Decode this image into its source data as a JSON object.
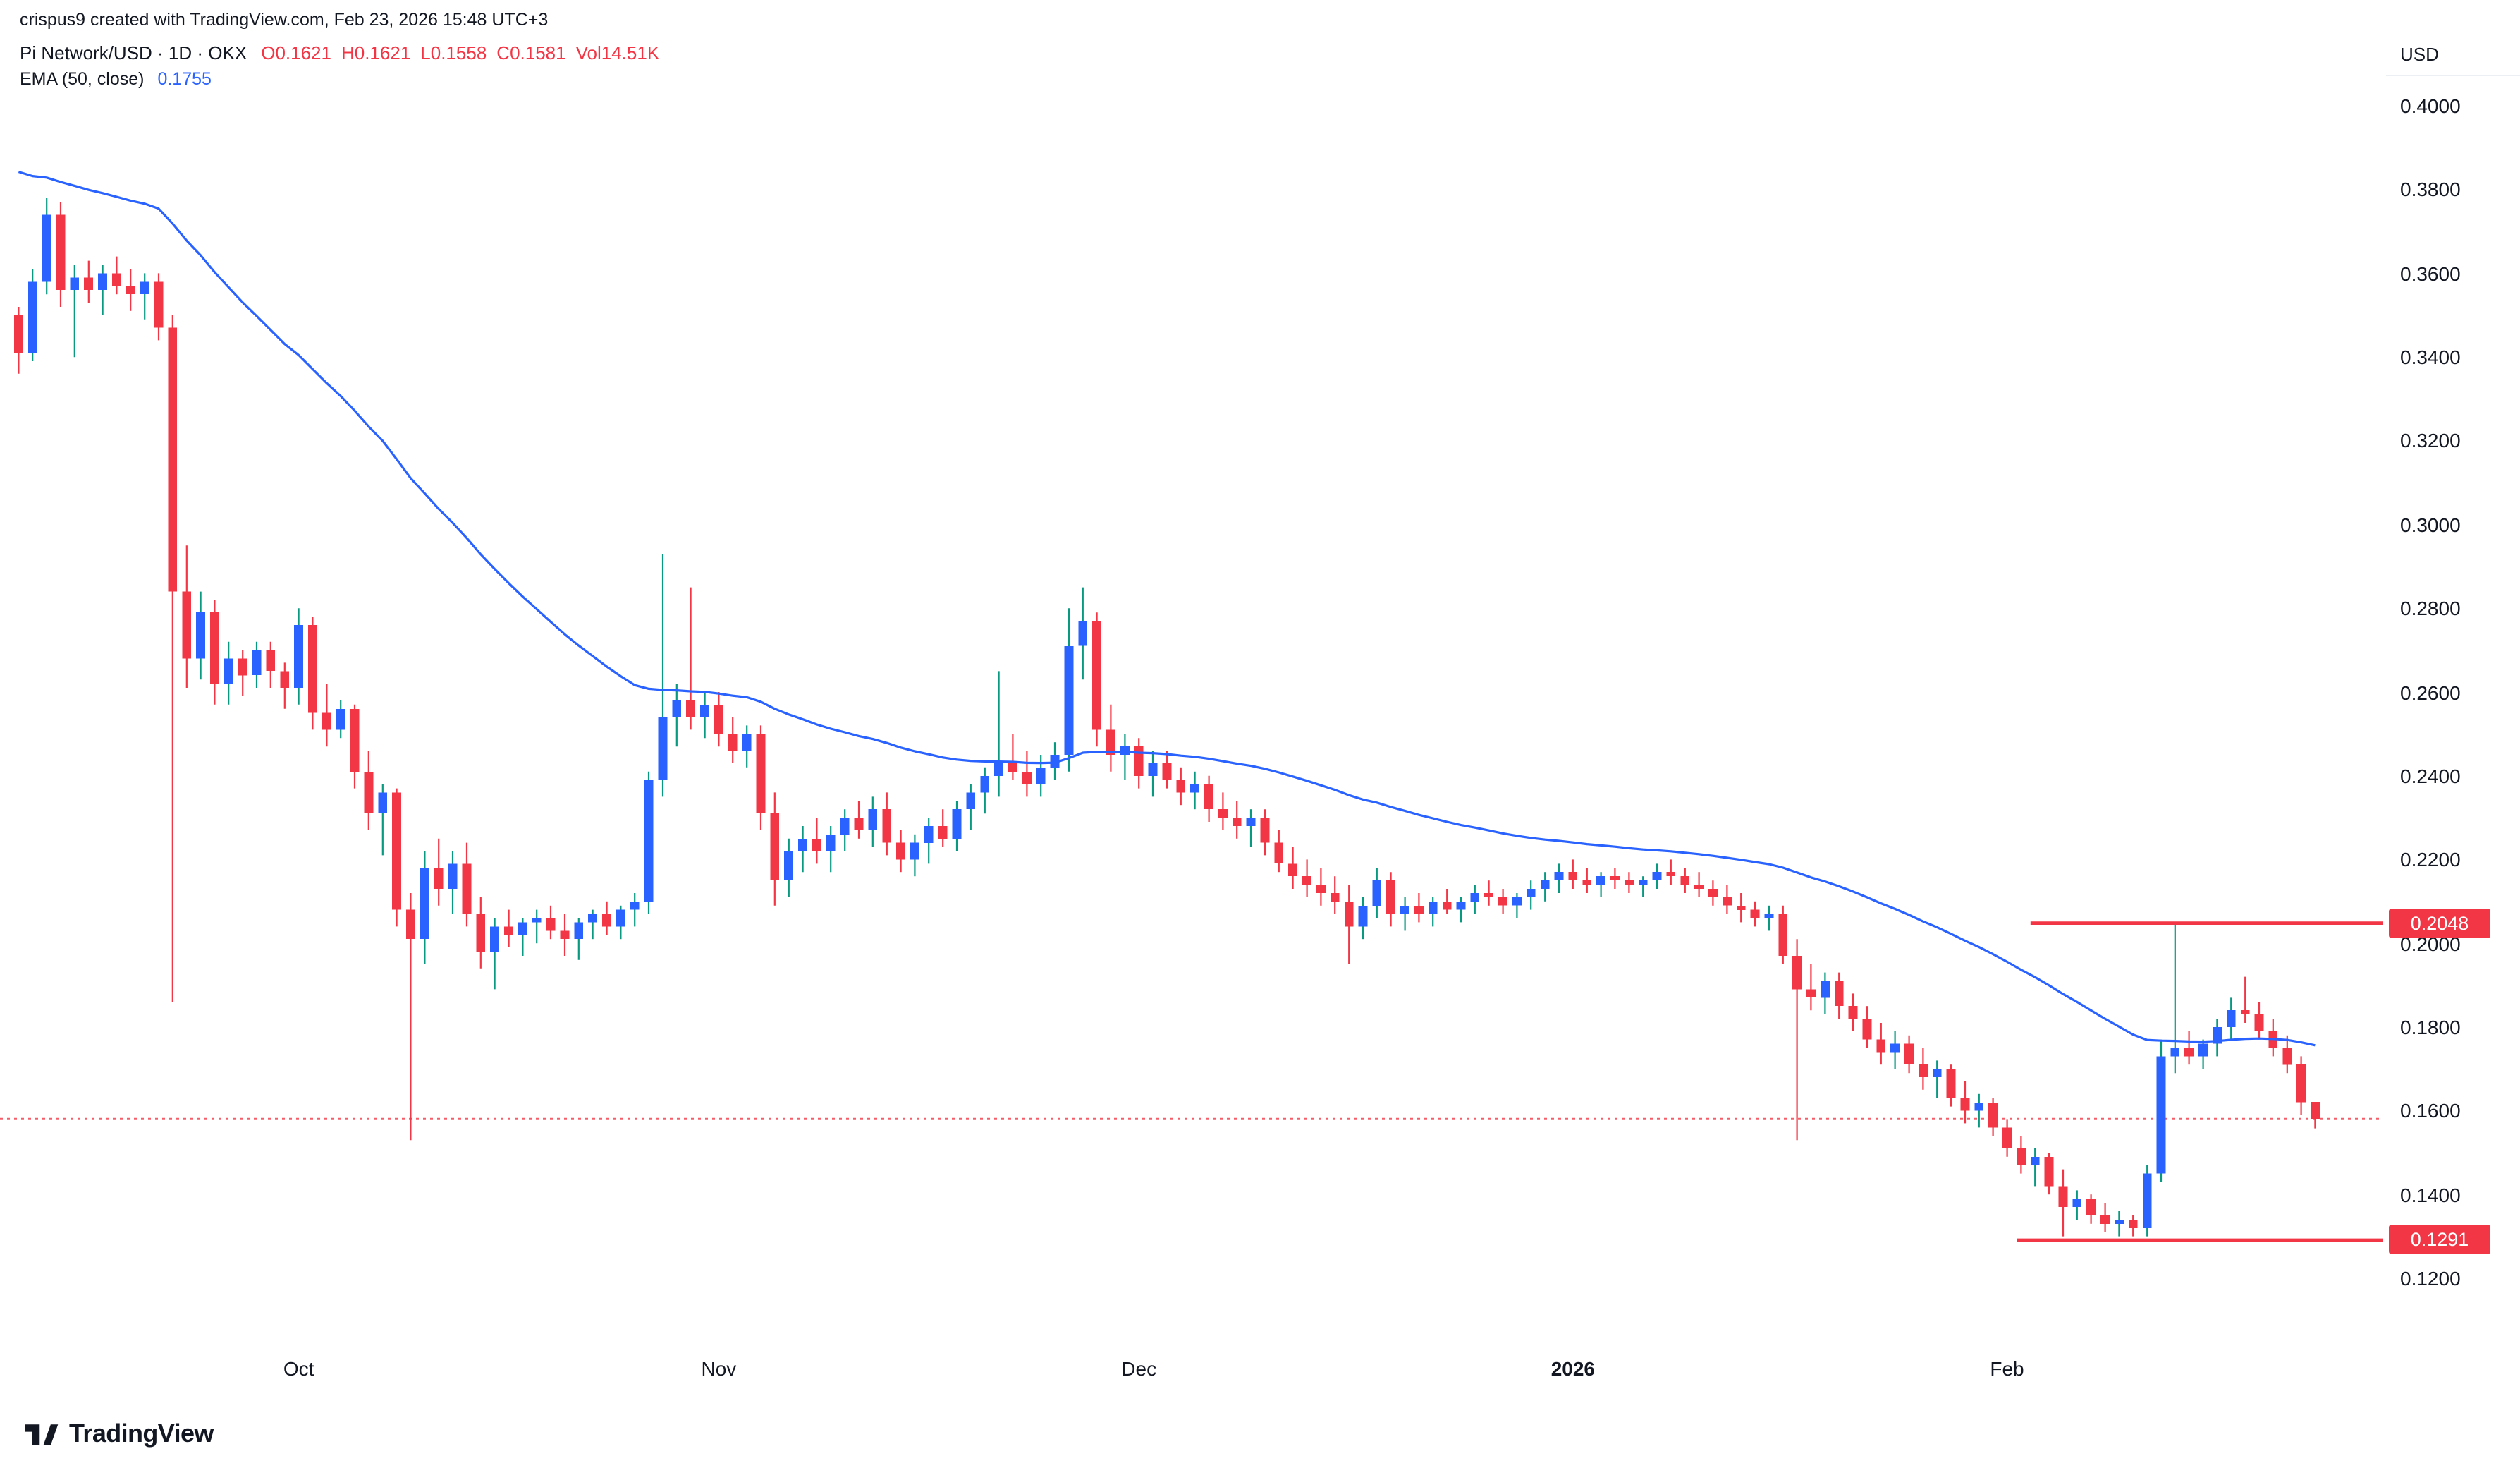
{
  "attribution": "crispus9 created with TradingView.com, Feb 23, 2026 15:48 UTC+3",
  "legend": {
    "symbol": "Pi Network/USD · 1D · OKX",
    "ohlc": [
      {
        "label": "O",
        "value": "0.1621"
      },
      {
        "label": "H",
        "value": "0.1621"
      },
      {
        "label": "L",
        "value": "0.1558"
      },
      {
        "label": "C",
        "value": "0.1581"
      }
    ],
    "volume_label": "Vol",
    "volume_value": "14.51K",
    "ema_label": "EMA (50, close)",
    "ema_value": "0.1755"
  },
  "price_axis": {
    "currency": "USD"
  },
  "footer": {
    "brand": "TradingView"
  },
  "colors": {
    "up": "#2962ff",
    "up_wick": "#089981",
    "down": "#f23645",
    "ema": "#2962ff",
    "level": "#f23645",
    "text": "#131722",
    "badge_text": "#ffffff"
  },
  "chart_data": {
    "type": "candlestick",
    "symbol": "Pi Network/USD",
    "interval": "1D",
    "exchange": "OKX",
    "last_ohlc": {
      "open": 0.1621,
      "high": 0.1621,
      "low": 0.1558,
      "close": 0.1581,
      "volume": "14.51K"
    },
    "ylim": [
      0.12,
      0.4
    ],
    "grid": false,
    "candles": [
      [
        0.35,
        0.352,
        0.336,
        0.341
      ],
      [
        0.341,
        0.361,
        0.339,
        0.358
      ],
      [
        0.358,
        0.378,
        0.355,
        0.374
      ],
      [
        0.374,
        0.377,
        0.352,
        0.356
      ],
      [
        0.356,
        0.362,
        0.34,
        0.359
      ],
      [
        0.359,
        0.363,
        0.353,
        0.356
      ],
      [
        0.356,
        0.362,
        0.35,
        0.36
      ],
      [
        0.36,
        0.364,
        0.355,
        0.357
      ],
      [
        0.357,
        0.361,
        0.351,
        0.355
      ],
      [
        0.355,
        0.36,
        0.349,
        0.358
      ],
      [
        0.358,
        0.36,
        0.344,
        0.347
      ],
      [
        0.347,
        0.35,
        0.186,
        0.284
      ],
      [
        0.284,
        0.295,
        0.261,
        0.268
      ],
      [
        0.268,
        0.284,
        0.263,
        0.279
      ],
      [
        0.279,
        0.282,
        0.257,
        0.262
      ],
      [
        0.262,
        0.272,
        0.257,
        0.268
      ],
      [
        0.268,
        0.27,
        0.259,
        0.264
      ],
      [
        0.264,
        0.272,
        0.261,
        0.27
      ],
      [
        0.27,
        0.272,
        0.261,
        0.265
      ],
      [
        0.265,
        0.267,
        0.256,
        0.261
      ],
      [
        0.261,
        0.28,
        0.257,
        0.276
      ],
      [
        0.276,
        0.278,
        0.251,
        0.255
      ],
      [
        0.255,
        0.262,
        0.247,
        0.251
      ],
      [
        0.251,
        0.258,
        0.249,
        0.256
      ],
      [
        0.256,
        0.257,
        0.237,
        0.241
      ],
      [
        0.241,
        0.246,
        0.227,
        0.231
      ],
      [
        0.231,
        0.238,
        0.221,
        0.236
      ],
      [
        0.236,
        0.237,
        0.204,
        0.208
      ],
      [
        0.208,
        0.212,
        0.153,
        0.201
      ],
      [
        0.201,
        0.222,
        0.195,
        0.218
      ],
      [
        0.218,
        0.225,
        0.209,
        0.213
      ],
      [
        0.213,
        0.222,
        0.207,
        0.219
      ],
      [
        0.219,
        0.224,
        0.204,
        0.207
      ],
      [
        0.207,
        0.211,
        0.194,
        0.198
      ],
      [
        0.198,
        0.206,
        0.189,
        0.204
      ],
      [
        0.204,
        0.208,
        0.199,
        0.202
      ],
      [
        0.202,
        0.206,
        0.197,
        0.205
      ],
      [
        0.205,
        0.208,
        0.2,
        0.206
      ],
      [
        0.206,
        0.209,
        0.201,
        0.203
      ],
      [
        0.203,
        0.207,
        0.197,
        0.201
      ],
      [
        0.201,
        0.206,
        0.196,
        0.205
      ],
      [
        0.205,
        0.208,
        0.201,
        0.207
      ],
      [
        0.207,
        0.21,
        0.202,
        0.204
      ],
      [
        0.204,
        0.209,
        0.201,
        0.208
      ],
      [
        0.208,
        0.212,
        0.204,
        0.21
      ],
      [
        0.21,
        0.241,
        0.207,
        0.239
      ],
      [
        0.239,
        0.293,
        0.235,
        0.254
      ],
      [
        0.254,
        0.262,
        0.247,
        0.258
      ],
      [
        0.258,
        0.285,
        0.251,
        0.254
      ],
      [
        0.254,
        0.26,
        0.249,
        0.257
      ],
      [
        0.257,
        0.26,
        0.247,
        0.25
      ],
      [
        0.25,
        0.254,
        0.243,
        0.246
      ],
      [
        0.246,
        0.252,
        0.242,
        0.25
      ],
      [
        0.25,
        0.252,
        0.227,
        0.231
      ],
      [
        0.231,
        0.236,
        0.209,
        0.215
      ],
      [
        0.215,
        0.225,
        0.211,
        0.222
      ],
      [
        0.222,
        0.228,
        0.217,
        0.225
      ],
      [
        0.225,
        0.23,
        0.219,
        0.222
      ],
      [
        0.222,
        0.228,
        0.217,
        0.226
      ],
      [
        0.226,
        0.232,
        0.222,
        0.23
      ],
      [
        0.23,
        0.234,
        0.225,
        0.227
      ],
      [
        0.227,
        0.235,
        0.223,
        0.232
      ],
      [
        0.232,
        0.236,
        0.221,
        0.224
      ],
      [
        0.224,
        0.227,
        0.217,
        0.22
      ],
      [
        0.22,
        0.226,
        0.216,
        0.224
      ],
      [
        0.224,
        0.23,
        0.219,
        0.228
      ],
      [
        0.228,
        0.232,
        0.223,
        0.225
      ],
      [
        0.225,
        0.234,
        0.222,
        0.232
      ],
      [
        0.232,
        0.238,
        0.227,
        0.236
      ],
      [
        0.236,
        0.242,
        0.231,
        0.24
      ],
      [
        0.24,
        0.265,
        0.235,
        0.243
      ],
      [
        0.243,
        0.25,
        0.239,
        0.241
      ],
      [
        0.241,
        0.246,
        0.235,
        0.238
      ],
      [
        0.238,
        0.245,
        0.235,
        0.242
      ],
      [
        0.242,
        0.248,
        0.239,
        0.245
      ],
      [
        0.245,
        0.28,
        0.241,
        0.271
      ],
      [
        0.271,
        0.285,
        0.263,
        0.277
      ],
      [
        0.277,
        0.279,
        0.247,
        0.251
      ],
      [
        0.251,
        0.257,
        0.241,
        0.245
      ],
      [
        0.245,
        0.25,
        0.239,
        0.247
      ],
      [
        0.247,
        0.249,
        0.237,
        0.24
      ],
      [
        0.24,
        0.246,
        0.235,
        0.243
      ],
      [
        0.243,
        0.246,
        0.237,
        0.239
      ],
      [
        0.239,
        0.242,
        0.233,
        0.236
      ],
      [
        0.236,
        0.241,
        0.232,
        0.238
      ],
      [
        0.238,
        0.24,
        0.229,
        0.232
      ],
      [
        0.232,
        0.236,
        0.227,
        0.23
      ],
      [
        0.23,
        0.234,
        0.225,
        0.228
      ],
      [
        0.228,
        0.232,
        0.223,
        0.23
      ],
      [
        0.23,
        0.232,
        0.221,
        0.224
      ],
      [
        0.224,
        0.227,
        0.217,
        0.219
      ],
      [
        0.219,
        0.223,
        0.213,
        0.216
      ],
      [
        0.216,
        0.22,
        0.211,
        0.214
      ],
      [
        0.214,
        0.218,
        0.209,
        0.212
      ],
      [
        0.212,
        0.216,
        0.207,
        0.21
      ],
      [
        0.21,
        0.214,
        0.195,
        0.204
      ],
      [
        0.204,
        0.211,
        0.201,
        0.209
      ],
      [
        0.209,
        0.218,
        0.206,
        0.215
      ],
      [
        0.215,
        0.217,
        0.204,
        0.207
      ],
      [
        0.207,
        0.211,
        0.203,
        0.209
      ],
      [
        0.209,
        0.212,
        0.205,
        0.207
      ],
      [
        0.207,
        0.211,
        0.204,
        0.21
      ],
      [
        0.21,
        0.213,
        0.207,
        0.208
      ],
      [
        0.208,
        0.211,
        0.205,
        0.21
      ],
      [
        0.21,
        0.214,
        0.207,
        0.212
      ],
      [
        0.212,
        0.215,
        0.209,
        0.211
      ],
      [
        0.211,
        0.213,
        0.207,
        0.209
      ],
      [
        0.209,
        0.212,
        0.206,
        0.211
      ],
      [
        0.211,
        0.215,
        0.208,
        0.213
      ],
      [
        0.213,
        0.217,
        0.21,
        0.215
      ],
      [
        0.215,
        0.219,
        0.212,
        0.217
      ],
      [
        0.217,
        0.22,
        0.213,
        0.215
      ],
      [
        0.215,
        0.218,
        0.212,
        0.214
      ],
      [
        0.214,
        0.217,
        0.211,
        0.216
      ],
      [
        0.216,
        0.218,
        0.213,
        0.215
      ],
      [
        0.215,
        0.217,
        0.212,
        0.214
      ],
      [
        0.214,
        0.216,
        0.211,
        0.215
      ],
      [
        0.215,
        0.219,
        0.213,
        0.217
      ],
      [
        0.217,
        0.22,
        0.214,
        0.216
      ],
      [
        0.216,
        0.218,
        0.212,
        0.214
      ],
      [
        0.214,
        0.217,
        0.211,
        0.213
      ],
      [
        0.213,
        0.215,
        0.209,
        0.211
      ],
      [
        0.211,
        0.214,
        0.207,
        0.209
      ],
      [
        0.209,
        0.212,
        0.205,
        0.208
      ],
      [
        0.208,
        0.21,
        0.204,
        0.206
      ],
      [
        0.206,
        0.209,
        0.203,
        0.207
      ],
      [
        0.207,
        0.209,
        0.195,
        0.197
      ],
      [
        0.197,
        0.201,
        0.153,
        0.189
      ],
      [
        0.189,
        0.195,
        0.184,
        0.187
      ],
      [
        0.187,
        0.193,
        0.183,
        0.191
      ],
      [
        0.191,
        0.193,
        0.182,
        0.185
      ],
      [
        0.185,
        0.188,
        0.179,
        0.182
      ],
      [
        0.182,
        0.185,
        0.175,
        0.177
      ],
      [
        0.177,
        0.181,
        0.171,
        0.174
      ],
      [
        0.174,
        0.179,
        0.17,
        0.176
      ],
      [
        0.176,
        0.178,
        0.169,
        0.171
      ],
      [
        0.171,
        0.175,
        0.165,
        0.168
      ],
      [
        0.168,
        0.172,
        0.163,
        0.17
      ],
      [
        0.17,
        0.171,
        0.161,
        0.163
      ],
      [
        0.163,
        0.167,
        0.157,
        0.16
      ],
      [
        0.16,
        0.164,
        0.156,
        0.162
      ],
      [
        0.162,
        0.163,
        0.154,
        0.156
      ],
      [
        0.156,
        0.158,
        0.149,
        0.151
      ],
      [
        0.151,
        0.154,
        0.145,
        0.147
      ],
      [
        0.147,
        0.151,
        0.142,
        0.149
      ],
      [
        0.149,
        0.15,
        0.14,
        0.142
      ],
      [
        0.142,
        0.146,
        0.13,
        0.137
      ],
      [
        0.137,
        0.141,
        0.134,
        0.139
      ],
      [
        0.139,
        0.14,
        0.133,
        0.135
      ],
      [
        0.135,
        0.138,
        0.131,
        0.133
      ],
      [
        0.133,
        0.136,
        0.13,
        0.134
      ],
      [
        0.134,
        0.135,
        0.13,
        0.132
      ],
      [
        0.132,
        0.147,
        0.13,
        0.145
      ],
      [
        0.145,
        0.177,
        0.143,
        0.173
      ],
      [
        0.173,
        0.2048,
        0.169,
        0.175
      ],
      [
        0.175,
        0.179,
        0.171,
        0.173
      ],
      [
        0.173,
        0.177,
        0.17,
        0.176
      ],
      [
        0.176,
        0.182,
        0.173,
        0.18
      ],
      [
        0.18,
        0.187,
        0.177,
        0.184
      ],
      [
        0.184,
        0.192,
        0.181,
        0.183
      ],
      [
        0.183,
        0.186,
        0.177,
        0.179
      ],
      [
        0.179,
        0.182,
        0.173,
        0.175
      ],
      [
        0.175,
        0.178,
        0.169,
        0.171
      ],
      [
        0.171,
        0.173,
        0.159,
        0.162
      ],
      [
        0.1621,
        0.1621,
        0.1558,
        0.1581
      ]
    ],
    "ema": {
      "period": 50,
      "seed": 0.386,
      "value": 0.1755
    },
    "levels": [
      {
        "price": 0.2048,
        "label": "0.2048",
        "style": "solid",
        "start_index": 144,
        "badge": true
      },
      {
        "price": 0.1291,
        "label": "0.1291",
        "style": "solid",
        "start_index": 143,
        "badge": true
      },
      {
        "price": 0.1581,
        "label": "0.1581",
        "style": "dotted",
        "start_index": 0,
        "full_width": true,
        "badge": false
      }
    ],
    "price_ticks": [
      {
        "label": "0.4000",
        "value": 0.4
      },
      {
        "label": "0.3800",
        "value": 0.38
      },
      {
        "label": "0.3600",
        "value": 0.36
      },
      {
        "label": "0.3400",
        "value": 0.34
      },
      {
        "label": "0.3200",
        "value": 0.32
      },
      {
        "label": "0.3000",
        "value": 0.3
      },
      {
        "label": "0.2800",
        "value": 0.28
      },
      {
        "label": "0.2600",
        "value": 0.26
      },
      {
        "label": "0.2400",
        "value": 0.24
      },
      {
        "label": "0.2200",
        "value": 0.22
      },
      {
        "label": "0.2000",
        "value": 0.2
      },
      {
        "label": "0.1800",
        "value": 0.18
      },
      {
        "label": "0.1600",
        "value": 0.16
      },
      {
        "label": "0.1400",
        "value": 0.14
      },
      {
        "label": "0.1200",
        "value": 0.12
      }
    ],
    "time_ticks": [
      {
        "label": "Oct",
        "index": 20
      },
      {
        "label": "Nov",
        "index": 50
      },
      {
        "label": "Dec",
        "index": 80
      },
      {
        "label": "2026",
        "index": 111,
        "year": true
      },
      {
        "label": "Feb",
        "index": 142
      }
    ]
  }
}
